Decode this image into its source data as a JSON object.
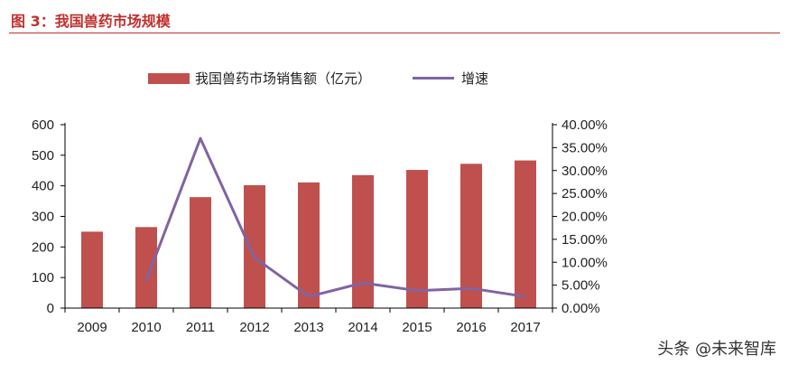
{
  "figure": {
    "title": "图 3：我国兽药市场规模"
  },
  "legend": {
    "bar_label": "我国兽药市场销售额（亿元）",
    "line_label": "增速"
  },
  "watermark": "头条 @未来智库",
  "colors": {
    "title": "#c0312f",
    "bar": "#c0504d",
    "line": "#8064a2",
    "axis": "#000000"
  },
  "chart_data": {
    "type": "bar",
    "categories": [
      "2009",
      "2010",
      "2011",
      "2012",
      "2013",
      "2014",
      "2015",
      "2016",
      "2017"
    ],
    "series": [
      {
        "name": "我国兽药市场销售额（亿元）",
        "type": "bar",
        "axis": "left",
        "values": [
          250,
          265,
          363,
          402,
          411,
          435,
          452,
          472,
          483
        ]
      },
      {
        "name": "增速",
        "type": "line",
        "axis": "right",
        "values": [
          null,
          0.06,
          0.37,
          0.11,
          0.025,
          0.055,
          0.038,
          0.043,
          0.025
        ]
      }
    ],
    "ylim": [
      0,
      600
    ],
    "yticks": [
      "0",
      "100",
      "200",
      "300",
      "400",
      "500",
      "600"
    ],
    "y2lim": [
      0,
      0.4
    ],
    "y2ticks": [
      "0.00%",
      "5.00%",
      "10.00%",
      "15.00%",
      "20.00%",
      "25.00%",
      "30.00%",
      "35.00%",
      "40.00%"
    ],
    "grid": false,
    "legend_position": "top"
  }
}
